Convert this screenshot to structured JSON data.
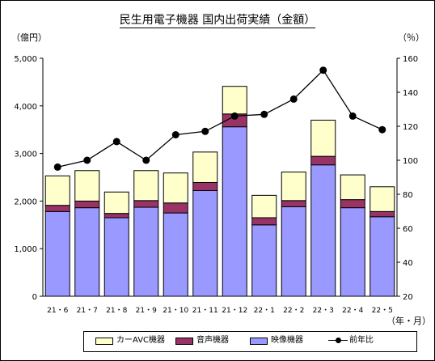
{
  "chart_data": {
    "type": "bar",
    "title": "民生用電子機器 国内出荷実績（金額）",
    "ylabel_left": "（億円）",
    "ylabel_right": "（％）",
    "xlabel": "（年・月）",
    "categories": [
      "21・6",
      "21・7",
      "21・8",
      "21・9",
      "21・10",
      "21・11",
      "21・12",
      "22・1",
      "22・2",
      "22・3",
      "22・4",
      "22・5"
    ],
    "ylim_left": [
      0,
      5000
    ],
    "yticks_left": [
      "0",
      "1,000",
      "2,000",
      "3,000",
      "4,000",
      "5,000"
    ],
    "ylim_right": [
      20,
      160
    ],
    "yticks_right": [
      "20",
      "40",
      "60",
      "80",
      "100",
      "120",
      "140",
      "160"
    ],
    "stacked": true,
    "series": [
      {
        "name": "映像機器",
        "type": "bar",
        "axis": "left",
        "color": "#9999ff",
        "values": [
          1780,
          1860,
          1650,
          1870,
          1750,
          2220,
          3560,
          1500,
          1880,
          2760,
          1860,
          1670
        ]
      },
      {
        "name": "音声機器",
        "type": "bar",
        "axis": "left",
        "color": "#993366",
        "values": [
          130,
          140,
          90,
          140,
          210,
          170,
          270,
          150,
          130,
          180,
          170,
          110
        ]
      },
      {
        "name": "カーAVC機器",
        "type": "bar",
        "axis": "left",
        "color": "#ffffcc",
        "values": [
          620,
          640,
          450,
          630,
          630,
          640,
          580,
          470,
          600,
          760,
          520,
          520
        ]
      },
      {
        "name": "前年比",
        "type": "line",
        "axis": "right",
        "color": "#000000",
        "values": [
          96,
          100,
          111,
          100,
          115,
          117,
          126,
          127,
          136,
          153,
          126,
          118
        ]
      }
    ],
    "legend_order": [
      "カーAVC機器",
      "音声機器",
      "映像機器",
      "前年比"
    ],
    "legend_position": "bottom",
    "grid": false
  }
}
